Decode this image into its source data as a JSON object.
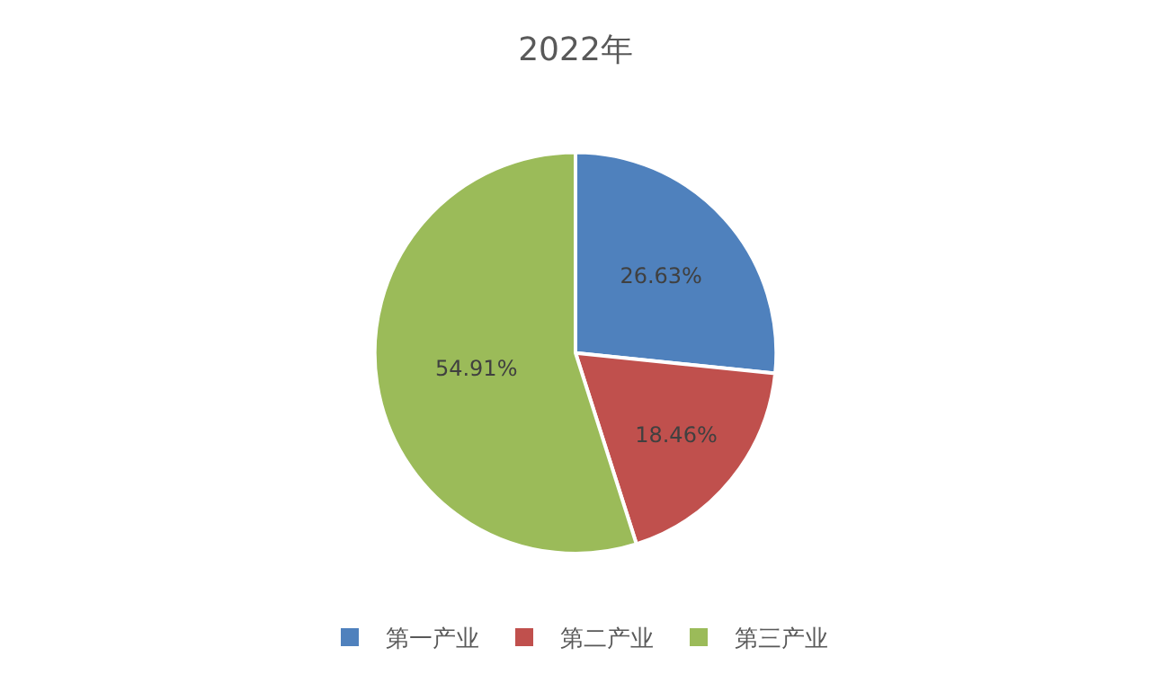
{
  "chart_data": {
    "type": "pie",
    "title": "2022年",
    "categories": [
      "第一产业",
      "第二产业",
      "第三产业"
    ],
    "values": [
      26.63,
      18.46,
      54.91
    ],
    "colors": [
      "#4f81bd",
      "#c0504d",
      "#9bbb59"
    ],
    "value_labels": [
      "26.63%",
      "18.46%",
      "54.91%"
    ],
    "legend": "bottom"
  }
}
